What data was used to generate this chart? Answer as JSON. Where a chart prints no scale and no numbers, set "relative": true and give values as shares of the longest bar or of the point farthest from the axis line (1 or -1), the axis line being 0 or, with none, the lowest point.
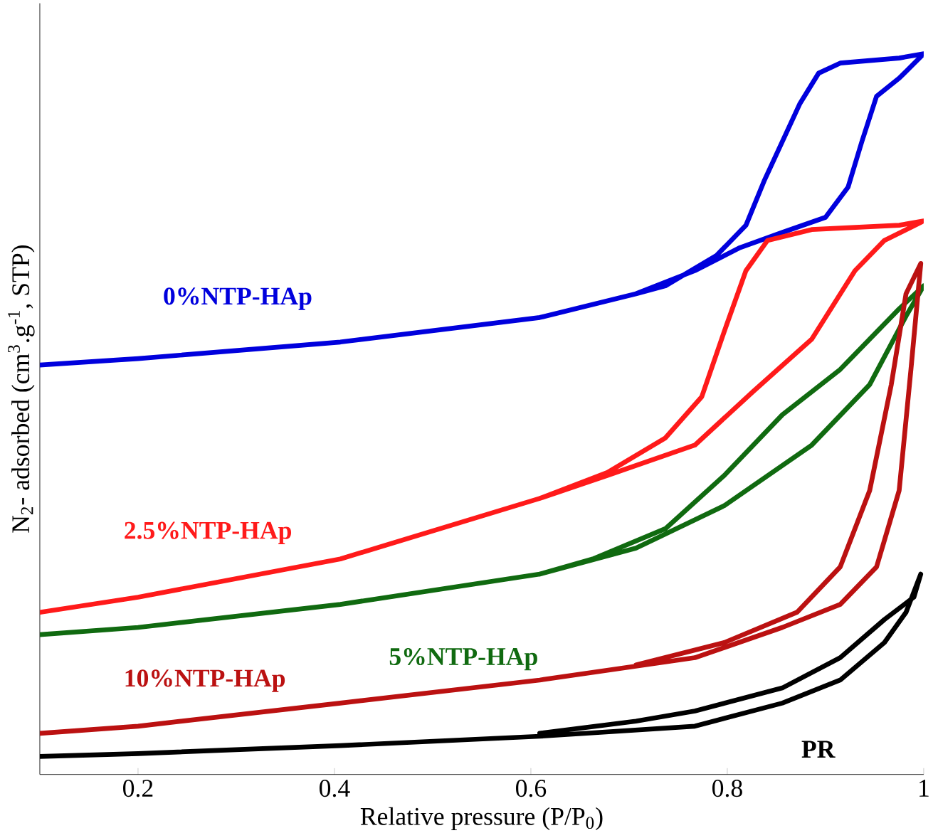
{
  "chart_data": {
    "type": "line",
    "relative": true,
    "xlabel": "Relative pressure (P/P$_{0}$)",
    "ylabel": "N$_{2}$- adsorbed (cm$^{3}$.g$^{-1}$, STP)",
    "xlim": [
      0.1,
      1.0
    ],
    "xticks": [
      0.2,
      0.4,
      0.6,
      0.8,
      1
    ],
    "line_style": "solid",
    "legend": false,
    "grid": false,
    "series": [
      {
        "name": "0%NTP-HAp",
        "color": "#0000dd",
        "x": [
          0.1,
          0.2,
          0.406,
          0.609,
          0.707,
          0.767,
          0.813,
          0.856,
          0.9,
          0.923,
          0.937,
          0.952,
          0.975,
          1.0,
          0.975,
          0.915,
          0.893,
          0.874,
          0.856,
          0.838,
          0.819,
          0.789,
          0.737,
          0.707
        ],
        "values": [
          0.568,
          0.577,
          0.6,
          0.634,
          0.667,
          0.699,
          0.731,
          0.752,
          0.773,
          0.815,
          0.878,
          0.941,
          0.966,
          1.0,
          0.994,
          0.987,
          0.973,
          0.931,
          0.878,
          0.825,
          0.762,
          0.72,
          0.678,
          0.667
        ]
      },
      {
        "name": "2.5%NTP-HAp",
        "color": "#ff1a1a",
        "x": [
          0.1,
          0.2,
          0.406,
          0.609,
          0.678,
          0.767,
          0.826,
          0.886,
          0.93,
          0.96,
          1.0,
          0.975,
          0.886,
          0.841,
          0.819,
          0.797,
          0.774,
          0.737,
          0.678,
          0.609
        ],
        "values": [
          0.225,
          0.246,
          0.299,
          0.383,
          0.415,
          0.457,
          0.531,
          0.604,
          0.699,
          0.741,
          0.768,
          0.762,
          0.756,
          0.741,
          0.699,
          0.615,
          0.524,
          0.467,
          0.419,
          0.383
        ]
      },
      {
        "name": "5%NTP-HAp",
        "color": "#106a10",
        "x": [
          0.1,
          0.2,
          0.406,
          0.609,
          0.707,
          0.797,
          0.886,
          0.945,
          0.982,
          1.0,
          0.975,
          0.915,
          0.856,
          0.797,
          0.737,
          0.663,
          0.609
        ],
        "values": [
          0.194,
          0.204,
          0.236,
          0.278,
          0.314,
          0.373,
          0.457,
          0.541,
          0.636,
          0.678,
          0.646,
          0.562,
          0.499,
          0.415,
          0.341,
          0.299,
          0.278
        ]
      },
      {
        "name": "10%NTP-HAp",
        "color": "#bb1111",
        "x": [
          0.1,
          0.2,
          0.406,
          0.609,
          0.767,
          0.856,
          0.915,
          0.952,
          0.975,
          0.987,
          0.997,
          0.982,
          0.967,
          0.945,
          0.915,
          0.871,
          0.797,
          0.707
        ],
        "values": [
          0.057,
          0.067,
          0.099,
          0.131,
          0.162,
          0.204,
          0.236,
          0.288,
          0.394,
          0.562,
          0.709,
          0.667,
          0.541,
          0.394,
          0.288,
          0.225,
          0.183,
          0.152
        ]
      },
      {
        "name": "PR",
        "color": "#000000",
        "x": [
          0.1,
          0.2,
          0.406,
          0.609,
          0.767,
          0.856,
          0.915,
          0.96,
          0.982,
          0.997,
          0.99,
          0.96,
          0.915,
          0.856,
          0.767,
          0.707,
          0.609
        ],
        "values": [
          0.025,
          0.029,
          0.04,
          0.053,
          0.067,
          0.099,
          0.131,
          0.183,
          0.225,
          0.278,
          0.246,
          0.215,
          0.162,
          0.12,
          0.088,
          0.074,
          0.057
        ]
      }
    ]
  }
}
